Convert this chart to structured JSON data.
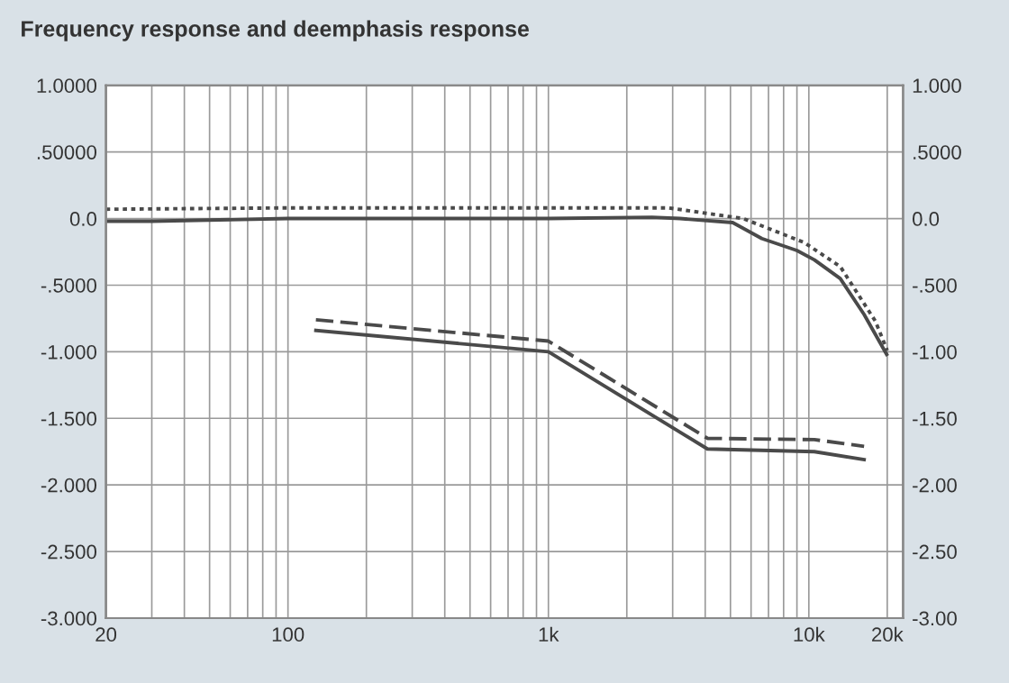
{
  "chart_data": {
    "type": "line",
    "title": "Frequency response and deemphasis response",
    "log": "x",
    "xlim": [
      20,
      23000
    ],
    "ylim": [
      -3.0,
      1.0
    ],
    "y2lim": [
      -3.0,
      1.0
    ],
    "xticks": [
      {
        "value": 20,
        "label": "20"
      },
      {
        "value": 30,
        "label": null
      },
      {
        "value": 40,
        "label": null
      },
      {
        "value": 50,
        "label": null
      },
      {
        "value": 60,
        "label": null
      },
      {
        "value": 70,
        "label": null
      },
      {
        "value": 80,
        "label": null
      },
      {
        "value": 90,
        "label": null
      },
      {
        "value": 100,
        "label": "100"
      },
      {
        "value": 200,
        "label": null
      },
      {
        "value": 300,
        "label": null
      },
      {
        "value": 400,
        "label": null
      },
      {
        "value": 500,
        "label": null
      },
      {
        "value": 600,
        "label": null
      },
      {
        "value": 700,
        "label": null
      },
      {
        "value": 800,
        "label": null
      },
      {
        "value": 900,
        "label": null
      },
      {
        "value": 1000,
        "label": "1k"
      },
      {
        "value": 2000,
        "label": null
      },
      {
        "value": 3000,
        "label": null
      },
      {
        "value": 4000,
        "label": null
      },
      {
        "value": 5000,
        "label": null
      },
      {
        "value": 6000,
        "label": null
      },
      {
        "value": 7000,
        "label": null
      },
      {
        "value": 8000,
        "label": null
      },
      {
        "value": 9000,
        "label": null
      },
      {
        "value": 10000,
        "label": "10k"
      },
      {
        "value": 20000,
        "label": "20k"
      }
    ],
    "yticks": [
      {
        "value": 1.0,
        "label": "1.0000"
      },
      {
        "value": 0.5,
        "label": ".50000"
      },
      {
        "value": 0.0,
        "label": "0.0"
      },
      {
        "value": -0.5,
        "label": "-.5000"
      },
      {
        "value": -1.0,
        "label": "-1.000"
      },
      {
        "value": -1.5,
        "label": "-1.500"
      },
      {
        "value": -2.0,
        "label": "-2.000"
      },
      {
        "value": -2.5,
        "label": "-2.500"
      },
      {
        "value": -3.0,
        "label": "-3.000"
      }
    ],
    "y2ticks": [
      {
        "value": 1.0,
        "label": "1.000"
      },
      {
        "value": 0.5,
        "label": ".5000"
      },
      {
        "value": 0.0,
        "label": "0.0"
      },
      {
        "value": -0.5,
        "label": "-.500"
      },
      {
        "value": -1.0,
        "label": "-1.00"
      },
      {
        "value": -1.5,
        "label": "-1.50"
      },
      {
        "value": -2.0,
        "label": "-2.00"
      },
      {
        "value": -2.5,
        "label": "-2.50"
      },
      {
        "value": -3.0,
        "label": "-3.00"
      }
    ],
    "grid": true,
    "legend": false,
    "series": [
      {
        "color": "#4a4a4a",
        "line_style": "solid",
        "x": [
          20,
          30,
          100,
          1000,
          2500,
          3200,
          5100,
          6600,
          9000,
          10500,
          13200,
          16300,
          19900
        ],
        "values": [
          -0.02,
          -0.02,
          0.0,
          0.0,
          0.01,
          0.0,
          -0.03,
          -0.15,
          -0.24,
          -0.31,
          -0.45,
          -0.72,
          -1.02
        ]
      },
      {
        "color": "#4a4a4a",
        "line_style": "dotted",
        "x": [
          20,
          100,
          1000,
          2900,
          5600,
          9600,
          13200,
          18000,
          20000
        ],
        "values": [
          0.07,
          0.08,
          0.08,
          0.08,
          0.0,
          -0.18,
          -0.36,
          -0.77,
          -0.99
        ]
      },
      {
        "color": "#4a4a4a",
        "line_style": "solid",
        "x": [
          128,
          1000,
          4080,
          10500,
          16300
        ],
        "values": [
          -0.84,
          -1.0,
          -1.73,
          -1.75,
          -1.81
        ]
      },
      {
        "color": "#4a4a4a",
        "line_style": "dashed",
        "x": [
          128,
          1000,
          4080,
          10500,
          16300
        ],
        "values": [
          -0.76,
          -0.92,
          -1.65,
          -1.66,
          -1.71
        ]
      }
    ]
  }
}
